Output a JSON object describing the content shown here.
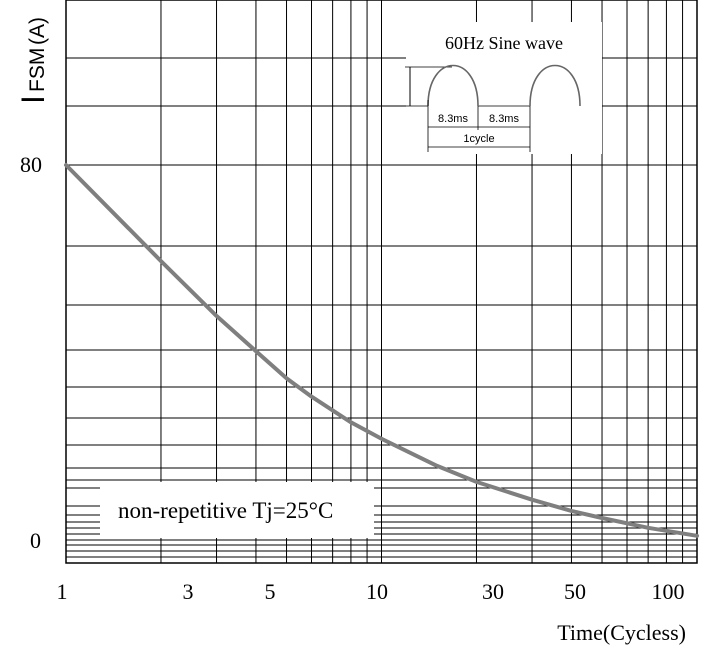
{
  "chart_data": {
    "type": "line",
    "x_scale": "log",
    "xlim": [
      1,
      100
    ],
    "ylim": [
      0,
      80
    ],
    "grid": true,
    "xlabel": "Time(Cycless)",
    "ylabel": {
      "main": "I",
      "sub": "FSM",
      "unit": "(A)"
    },
    "x_tick_labels": [
      "1",
      "3",
      "5",
      "10",
      "30",
      "50",
      "100"
    ],
    "x_ticks": [
      1,
      3,
      5,
      10,
      30,
      50,
      100
    ],
    "y_tick_labels": [
      "80",
      "0"
    ],
    "y_ticks": [
      80,
      0
    ],
    "series": [
      {
        "color": "#7f7f7f",
        "x": [
          1,
          2,
          3,
          4,
          5,
          6,
          8,
          10,
          15,
          20,
          30,
          40,
          50,
          70,
          100
        ],
        "y": [
          80,
          59.5,
          47.8,
          40.3,
          34.5,
          30.6,
          25.1,
          21.6,
          15.8,
          12.4,
          8.6,
          6.2,
          4.7,
          2.6,
          0.9
        ]
      }
    ],
    "annotations": {
      "condition": "non-repetitive Tj=25°C",
      "inset_title": "60Hz Sine wave",
      "inset_half1": "8.3ms",
      "inset_half2": "8.3ms",
      "inset_cycle": "1cycle"
    }
  }
}
